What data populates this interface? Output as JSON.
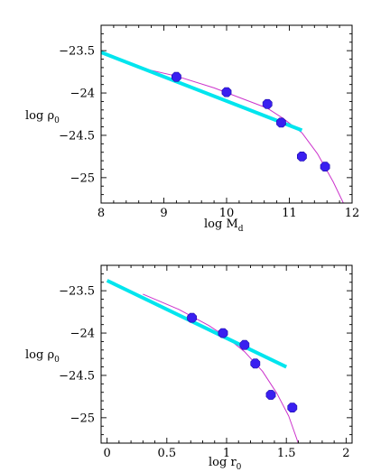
{
  "colors": {
    "fit_line": "#00e5ee",
    "curve": "#cc33cc",
    "points": "#3a1ff0",
    "points_stroke": "#1a0aa8"
  },
  "chart_data": [
    {
      "type": "scatter",
      "title": "",
      "xlabel": "log M_d",
      "xlabel_main": "log M",
      "xlabel_sub": "d",
      "ylabel": "log ρ_0",
      "ylabel_main": "log ρ",
      "ylabel_sub": "0",
      "xlim": [
        8,
        12
      ],
      "ylim": [
        -25.3,
        -23.2
      ],
      "xticks": [
        8,
        9,
        10,
        11,
        12
      ],
      "xtick_labels": [
        "8",
        "9",
        "10",
        "11",
        "12"
      ],
      "yticks": [
        -23.5,
        -24,
        -24.5,
        -25
      ],
      "ytick_labels": [
        "−23.5",
        "−24",
        "−24.5",
        "−25"
      ],
      "grid": false,
      "points": {
        "x": [
          9.2,
          10.0,
          10.65,
          10.87,
          11.2,
          11.57
        ],
        "y": [
          -23.81,
          -23.99,
          -24.13,
          -24.35,
          -24.75,
          -24.87
        ]
      },
      "fit_line": {
        "x": [
          8.0,
          11.2
        ],
        "y": [
          -23.52,
          -24.44
        ]
      },
      "curve": {
        "x": [
          8.55,
          9.2,
          9.8,
          10.3,
          10.65,
          10.9,
          11.2,
          11.45,
          11.7,
          11.88
        ],
        "y": [
          -23.69,
          -23.8,
          -23.94,
          -24.08,
          -24.18,
          -24.3,
          -24.47,
          -24.72,
          -25.05,
          -25.33
        ]
      }
    },
    {
      "type": "scatter",
      "title": "",
      "xlabel": "log r_0",
      "xlabel_main": "log r",
      "xlabel_sub": "0",
      "ylabel": "log ρ_0",
      "ylabel_main": "log ρ",
      "ylabel_sub": "0",
      "xlim": [
        -0.05,
        2.05
      ],
      "ylim": [
        -25.3,
        -23.2
      ],
      "xticks": [
        0,
        0.5,
        1,
        1.5,
        2
      ],
      "xtick_labels": [
        "0",
        "0.5",
        "1",
        "1.5",
        "2"
      ],
      "yticks": [
        -23.5,
        -24,
        -24.5,
        -25
      ],
      "ytick_labels": [
        "−23.5",
        "−24",
        "−24.5",
        "−25"
      ],
      "grid": false,
      "points": {
        "x": [
          0.71,
          0.97,
          1.15,
          1.24,
          1.37,
          1.55
        ],
        "y": [
          -23.82,
          -24.0,
          -24.14,
          -24.36,
          -24.73,
          -24.88
        ]
      },
      "fit_line": {
        "x": [
          0.0,
          1.5
        ],
        "y": [
          -23.38,
          -24.4
        ]
      },
      "curve": {
        "x": [
          0.3,
          0.6,
          0.85,
          1.0,
          1.15,
          1.3,
          1.42,
          1.52,
          1.6
        ],
        "y": [
          -23.54,
          -23.72,
          -23.91,
          -24.05,
          -24.22,
          -24.45,
          -24.71,
          -24.98,
          -25.3
        ]
      }
    }
  ]
}
